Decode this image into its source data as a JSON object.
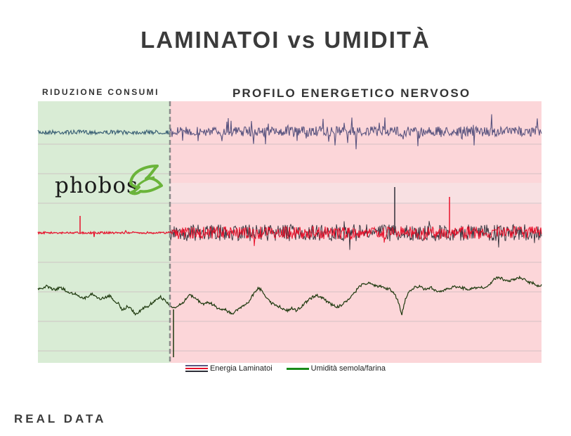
{
  "title": "LAMINATOI vs UMIDITÀ",
  "footer": "REAL DATA",
  "colors": {
    "green_zone": "#d9ecd5",
    "red_zone": "#fcd6d9",
    "band_zone": "#f8e0e2",
    "energy_top": "#5b5580",
    "energy_top_left": "#3f6478",
    "energy_red": "#e8102a",
    "energy_dark": "#2e2e38",
    "humidity": "#1f3a0f",
    "logo_leaf": "#6ab43a"
  },
  "logo": {
    "text": "phobos"
  },
  "chart_data": {
    "type": "line",
    "title": "LAMINATOI vs UMIDITÀ",
    "zones": [
      {
        "label": "RIDUZIONE CONSUMI",
        "x_from": 0,
        "x_to": 0.26,
        "color": "green"
      },
      {
        "label": "PROFILO ENERGETICO NERVOSO",
        "x_from": 0.26,
        "x_to": 1,
        "color": "red"
      }
    ],
    "grid": true,
    "legend": {
      "position": "bottom-center",
      "entries": [
        "Energia Laminatoi",
        "Umidità semola/farina"
      ]
    },
    "series": [
      {
        "name": "Energia Laminatoi",
        "note_lines": [
          "upper trace",
          "lower red/black trace"
        ],
        "values_relative": {
          "green_zone_level": 0.12,
          "red_zone_level": 0.12,
          "green_zone_noise": "low",
          "red_zone_noise": "high"
        }
      },
      {
        "name": "Umidità semola/farina",
        "humidity_profile": [
          0.62,
          0.64,
          0.66,
          0.63,
          0.61,
          0.64,
          0.62,
          0.58,
          0.56,
          0.55,
          0.5,
          0.48,
          0.52,
          0.55,
          0.5,
          0.47,
          0.5,
          0.52,
          0.44,
          0.41,
          0.3,
          0.36,
          0.32,
          0.25,
          0.28,
          0.34,
          0.36,
          0.42,
          0.47,
          0.5,
          0.45,
          0.38,
          0.33,
          0.36,
          0.4,
          0.48,
          0.53,
          0.5,
          0.44,
          0.39,
          0.42,
          0.4,
          0.36,
          0.31,
          0.33,
          0.28,
          0.25,
          0.3,
          0.34,
          0.39,
          0.45,
          0.55,
          0.64,
          0.6,
          0.5,
          0.42,
          0.38,
          0.36,
          0.32,
          0.3,
          0.33,
          0.3,
          0.35,
          0.4,
          0.46,
          0.5,
          0.52,
          0.5,
          0.45,
          0.4,
          0.38,
          0.35,
          0.4,
          0.45,
          0.5,
          0.58,
          0.66,
          0.7,
          0.71,
          0.69,
          0.67,
          0.66,
          0.64,
          0.62,
          0.58,
          0.45,
          0.25,
          0.5,
          0.6,
          0.64,
          0.66,
          0.63,
          0.62,
          0.64,
          0.6,
          0.58,
          0.6,
          0.62,
          0.65,
          0.66,
          0.64,
          0.63,
          0.62,
          0.63,
          0.65,
          0.64,
          0.66,
          0.7,
          0.78,
          0.8,
          0.76,
          0.74,
          0.75,
          0.77,
          0.79,
          0.76,
          0.72,
          0.71,
          0.66,
          0.69
        ]
      }
    ]
  },
  "labels": {
    "left_zone": "RIDUZIONE CONSUMI",
    "right_zone": "PROFILO ENERGETICO NERVOSO",
    "legend_energy": "Energia Laminatoi",
    "legend_humidity": "Umidità semola/farina"
  }
}
